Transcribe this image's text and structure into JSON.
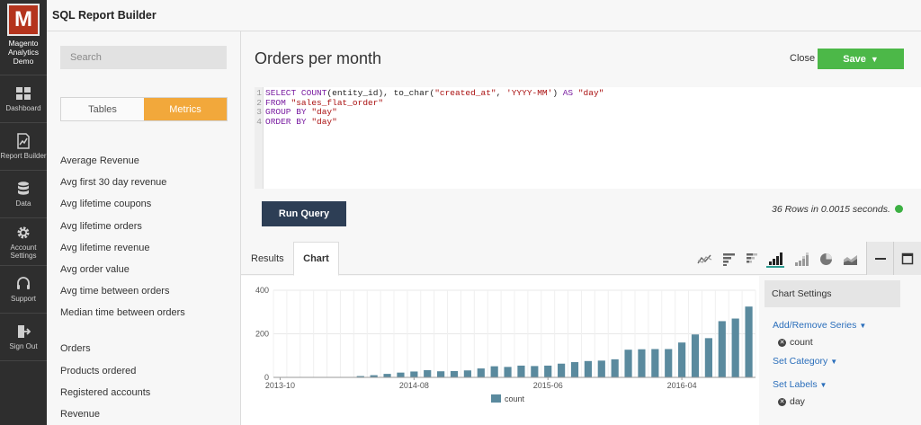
{
  "app": {
    "logo_letter": "M",
    "logo_text_lines": [
      "Magento",
      "Analytics",
      "Demo"
    ],
    "header_title": "SQL Report Builder"
  },
  "nav": [
    {
      "icon": "dashboard-icon",
      "label": "Dashboard"
    },
    {
      "icon": "report-builder-icon",
      "label": "Report Builder"
    },
    {
      "icon": "database-icon",
      "label": "Data"
    },
    {
      "icon": "gear-icon",
      "label": "Account Settings"
    },
    {
      "icon": "headset-icon",
      "label": "Support"
    },
    {
      "icon": "sign-out-icon",
      "label": "Sign Out"
    }
  ],
  "sidebar": {
    "search_placeholder": "Search",
    "tabs": [
      "Tables",
      "Metrics"
    ],
    "active_tab": "Metrics",
    "metrics": [
      "Average Revenue",
      "Avg first 30 day revenue",
      "Avg lifetime coupons",
      "Avg lifetime orders",
      "Avg lifetime revenue",
      "Avg order value",
      "Avg time between orders",
      "Median time between orders",
      "Orders",
      "Products ordered",
      "Registered accounts",
      "Revenue"
    ]
  },
  "main": {
    "title": "Orders per month",
    "close_label": "Close",
    "save_label": "Save",
    "sql_lines": [
      "SELECT COUNT(entity_id), to_char(\"created_at\", 'YYYY-MM') AS \"day\"",
      "FROM \"sales_flat_order\"",
      "GROUP BY \"day\"",
      "ORDER BY \"day\""
    ],
    "run_label": "Run Query",
    "rows_info": "36 Rows in 0.0015 seconds.",
    "status_color": "#3cb043",
    "tabs": [
      "Results",
      "Chart"
    ],
    "active_tab": "Chart",
    "chart_types": [
      "line-chart-icon",
      "horizontal-bar-icon",
      "stacked-horizontal-bar-icon",
      "bar-chart-icon",
      "stacked-bar-icon",
      "pie-chart-icon",
      "area-chart-icon"
    ],
    "selected_chart_type": "bar-chart-icon"
  },
  "chart_settings": {
    "title": "Chart Settings",
    "add_remove_series": "Add/Remove Series",
    "series_item": "count",
    "set_category": "Set Category",
    "set_labels": "Set Labels",
    "label_item": "day"
  },
  "chart_data": {
    "type": "bar",
    "x": [
      "2013-10",
      "2013-11",
      "2013-12",
      "2014-01",
      "2014-02",
      "2014-03",
      "2014-04",
      "2014-05",
      "2014-06",
      "2014-07",
      "2014-08",
      "2014-09",
      "2014-10",
      "2014-11",
      "2014-12",
      "2015-01",
      "2015-02",
      "2015-03",
      "2015-04",
      "2015-05",
      "2015-06",
      "2015-07",
      "2015-08",
      "2015-09",
      "2015-10",
      "2015-11",
      "2015-12",
      "2016-01",
      "2016-02",
      "2016-03",
      "2016-04",
      "2016-05",
      "2016-06",
      "2016-07",
      "2016-08",
      "2016-09"
    ],
    "values": [
      1,
      1,
      1,
      1,
      1,
      1,
      6,
      10,
      16,
      22,
      27,
      33,
      28,
      29,
      32,
      41,
      51,
      48,
      54,
      52,
      54,
      63,
      70,
      75,
      77,
      83,
      127,
      129,
      130,
      130,
      160,
      197,
      180,
      258,
      270,
      325
    ],
    "xticks": [
      "2013-10",
      "2014-08",
      "2015-06",
      "2016-04"
    ],
    "yticks": [
      0,
      200,
      400
    ],
    "ylim": [
      0,
      400
    ],
    "series": [
      {
        "name": "count",
        "color": "#5a8a9e"
      }
    ],
    "legend": "bottom",
    "grid": true
  }
}
